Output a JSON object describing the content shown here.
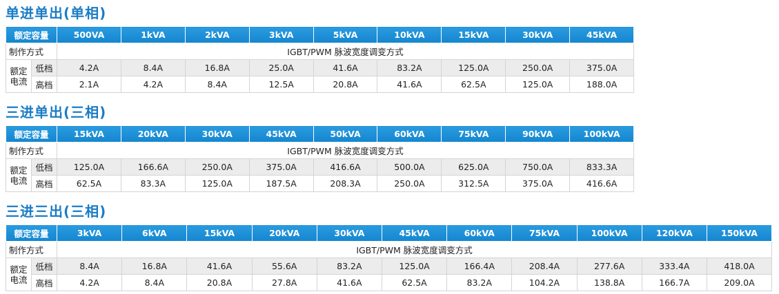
{
  "sections": [
    {
      "title": "单进单出(单相)",
      "header_label": "额定容量",
      "capacities": [
        "500VA",
        "1kVA",
        "2kVA",
        "3kVA",
        "5kVA",
        "10kVA",
        "15kVA",
        "30kVA",
        "45kVA"
      ],
      "method_label": "制作方式",
      "method": "IGBT/PWM 脉波宽度调变方式",
      "current_label": "额定电流",
      "low_label": "低档",
      "high_label": "高档",
      "low": [
        "4.2A",
        "8.4A",
        "16.8A",
        "25.0A",
        "41.6A",
        "83.2A",
        "125.0A",
        "250.0A",
        "375.0A"
      ],
      "high": [
        "2.1A",
        "4.2A",
        "8.4A",
        "12.5A",
        "20.8A",
        "41.6A",
        "62.5A",
        "125.0A",
        "188.0A"
      ]
    },
    {
      "title": "三进单出(三相)",
      "header_label": "额定容量",
      "capacities": [
        "15kVA",
        "20kVA",
        "30kVA",
        "45kVA",
        "50kVA",
        "60kVA",
        "75kVA",
        "90kVA",
        "100kVA"
      ],
      "method_label": "制作方式",
      "method": "IGBT/PWM 脉波宽度调变方式",
      "current_label": "额定电流",
      "low_label": "低档",
      "high_label": "高档",
      "low": [
        "125.0A",
        "166.6A",
        "250.0A",
        "375.0A",
        "416.6A",
        "500.0A",
        "625.0A",
        "750.0A",
        "833.3A"
      ],
      "high": [
        "62.5A",
        "83.3A",
        "125.0A",
        "187.5A",
        "208.3A",
        "250.0A",
        "312.5A",
        "375.0A",
        "416.6A"
      ]
    },
    {
      "title": "三进三出(三相)",
      "header_label": "额定容量",
      "capacities": [
        "3kVA",
        "6kVA",
        "15kVA",
        "20kVA",
        "30kVA",
        "45kVA",
        "60kVA",
        "75kVA",
        "100kVA",
        "120kVA",
        "150kVA"
      ],
      "method_label": "制作方式",
      "method": "IGBT/PWM 脉波宽度调变方式",
      "current_label": "额定电流",
      "low_label": "低档",
      "high_label": "高档",
      "low": [
        "8.4A",
        "16.8A",
        "41.6A",
        "55.6A",
        "83.2A",
        "125.0A",
        "166.4A",
        "208.4A",
        "277.6A",
        "333.4A",
        "418.0A"
      ],
      "high": [
        "4.2A",
        "8.4A",
        "20.8A",
        "27.8A",
        "41.6A",
        "62.5A",
        "83.2A",
        "104.2A",
        "138.8A",
        "166.7A",
        "209.0A"
      ]
    }
  ]
}
